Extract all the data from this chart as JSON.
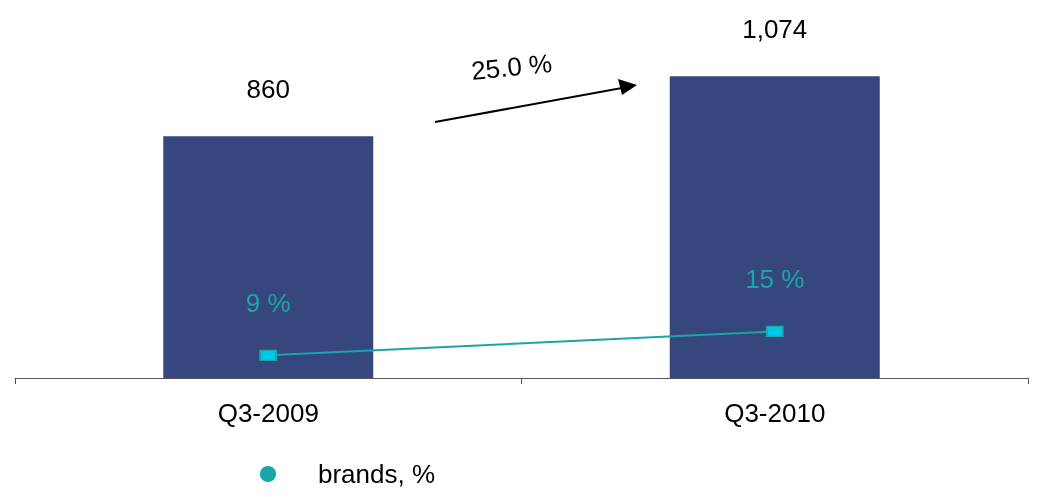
{
  "chart_data": {
    "type": "bar",
    "categories": [
      "Q3-2009",
      "Q3-2010"
    ],
    "series": [
      {
        "color": "#36467f",
        "values": [
          860,
          1074
        ],
        "value_labels": [
          "860",
          "1,074"
        ]
      },
      {
        "type": "line",
        "name": "brands, %",
        "axis": "y2",
        "color": "#1aa6a6",
        "values": [
          9,
          15
        ],
        "value_labels": [
          "9 %",
          "15 %"
        ]
      }
    ],
    "tick_labels": "x",
    "grid": false,
    "legend": "bottom",
    "marker": "square",
    "annotations": [
      "25.0 %"
    ]
  }
}
